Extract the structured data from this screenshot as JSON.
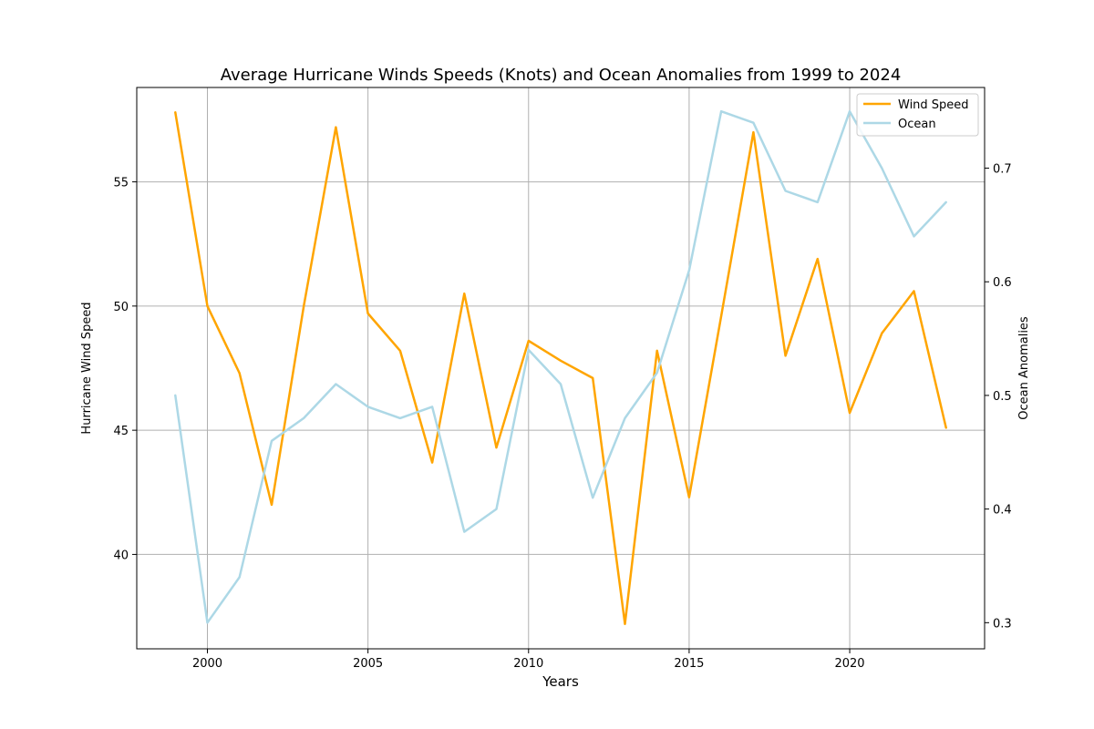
{
  "chart_data": {
    "type": "line",
    "title": "Average Hurricane Winds Speeds (Knots) and Ocean Anomalies from 1999 to 2024",
    "xlabel": "Years",
    "ylabel": "Hurricane Wind Speed",
    "ylabel_right": "Ocean Anomalies",
    "x": [
      1999,
      2000,
      2001,
      2002,
      2003,
      2004,
      2005,
      2006,
      2007,
      2008,
      2009,
      2010,
      2011,
      2012,
      2013,
      2014,
      2015,
      2016,
      2017,
      2018,
      2019,
      2020,
      2021,
      2022,
      2023
    ],
    "xlim": [
      1997.8,
      2024.2
    ],
    "xticks": [
      2000,
      2005,
      2010,
      2015,
      2020
    ],
    "ylim": [
      36.2,
      58.8
    ],
    "yticks": [
      40,
      45,
      50,
      55
    ],
    "ylim_right": [
      0.277,
      0.771
    ],
    "yticks_right": [
      0.3,
      0.4,
      0.5,
      0.6,
      0.7
    ],
    "grid": true,
    "legend_position": "top-right",
    "series": [
      {
        "name": "Wind Speed",
        "axis": "left",
        "color": "#FFA500",
        "values": [
          57.8,
          50.0,
          47.3,
          42.0,
          50.0,
          57.2,
          49.7,
          48.2,
          43.7,
          50.5,
          44.3,
          48.6,
          47.8,
          47.1,
          37.2,
          48.2,
          42.3,
          49.6,
          57.0,
          48.0,
          51.9,
          45.7,
          48.9,
          50.6,
          45.1
        ]
      },
      {
        "name": "Ocean",
        "axis": "right",
        "color": "#ADD8E6",
        "values": [
          0.5,
          0.3,
          0.34,
          0.46,
          0.48,
          0.51,
          0.49,
          0.48,
          0.49,
          0.38,
          0.4,
          0.54,
          0.51,
          0.41,
          0.48,
          0.52,
          0.61,
          0.75,
          0.74,
          0.68,
          0.67,
          0.75,
          0.7,
          0.64,
          0.67
        ]
      }
    ]
  }
}
